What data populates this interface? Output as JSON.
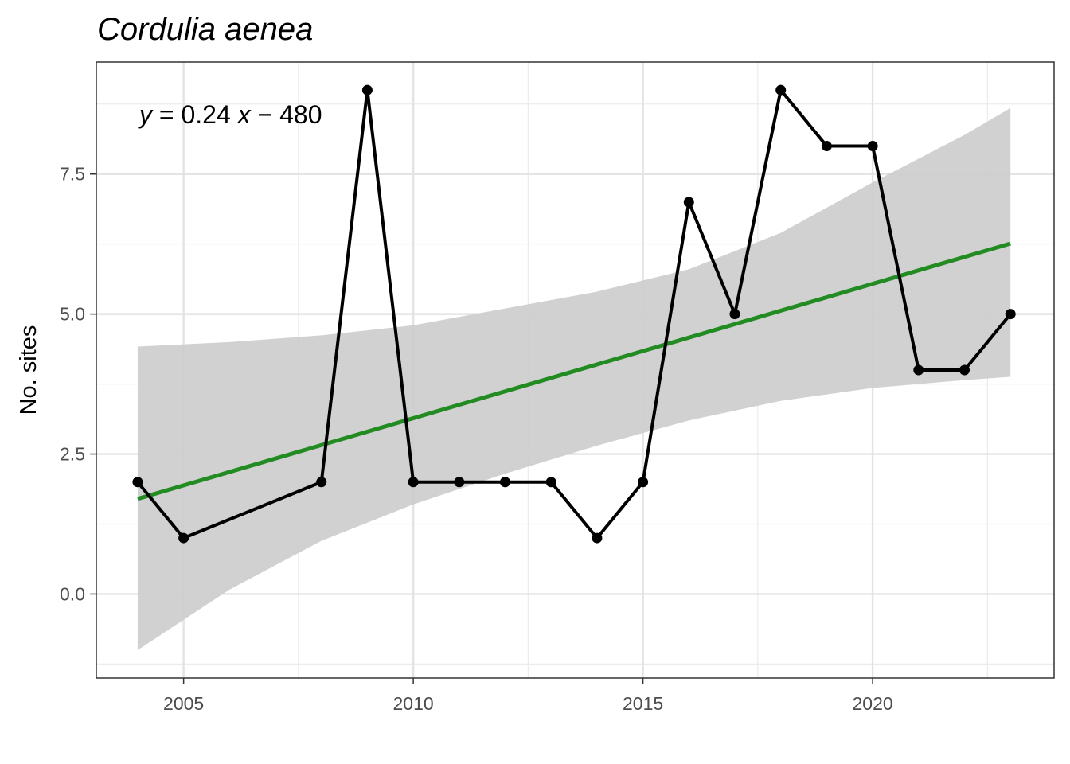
{
  "chart_data": {
    "type": "line",
    "title": "Cordulia aenea",
    "xlabel": "",
    "ylabel": "No. sites",
    "xlim": [
      2003.1,
      2023.95
    ],
    "ylim": [
      -1.5,
      9.5
    ],
    "x_ticks": [
      2005,
      2010,
      2015,
      2020
    ],
    "x_tick_labels": [
      "2005",
      "2010",
      "2015",
      "2020"
    ],
    "y_ticks": [
      0,
      2.5,
      5,
      7.5
    ],
    "y_tick_labels": [
      "0.0",
      "2.5",
      "5.0",
      "7.5"
    ],
    "grid": true,
    "series": [
      {
        "x": [
          2004,
          2005,
          2008,
          2009,
          2010,
          2011,
          2012,
          2013,
          2014,
          2015,
          2016,
          2017,
          2018,
          2019,
          2020,
          2021,
          2022,
          2023
        ],
        "values": [
          2,
          1,
          2,
          9,
          2,
          2,
          2,
          2,
          1,
          2,
          7,
          5,
          9,
          8,
          8,
          4,
          4,
          5
        ],
        "color": "#000000"
      }
    ],
    "trend": {
      "x": [
        2004,
        2023
      ],
      "values": [
        1.7,
        6.26
      ],
      "color": "#228B22"
    },
    "confidence_band": {
      "x": [
        2004,
        2006,
        2008,
        2010,
        2012,
        2014,
        2016,
        2018,
        2020,
        2022,
        2023
      ],
      "lower": [
        -1.0,
        0.08,
        0.95,
        1.6,
        2.15,
        2.65,
        3.1,
        3.45,
        3.68,
        3.82,
        3.88
      ],
      "upper": [
        4.42,
        4.5,
        4.62,
        4.8,
        5.1,
        5.4,
        5.8,
        6.45,
        7.35,
        8.2,
        8.68
      ],
      "color": "#cccccc"
    },
    "annotation": {
      "lhs": "y",
      "equals": " = 0.24 ",
      "var": "x",
      "rest": " − 480"
    }
  }
}
